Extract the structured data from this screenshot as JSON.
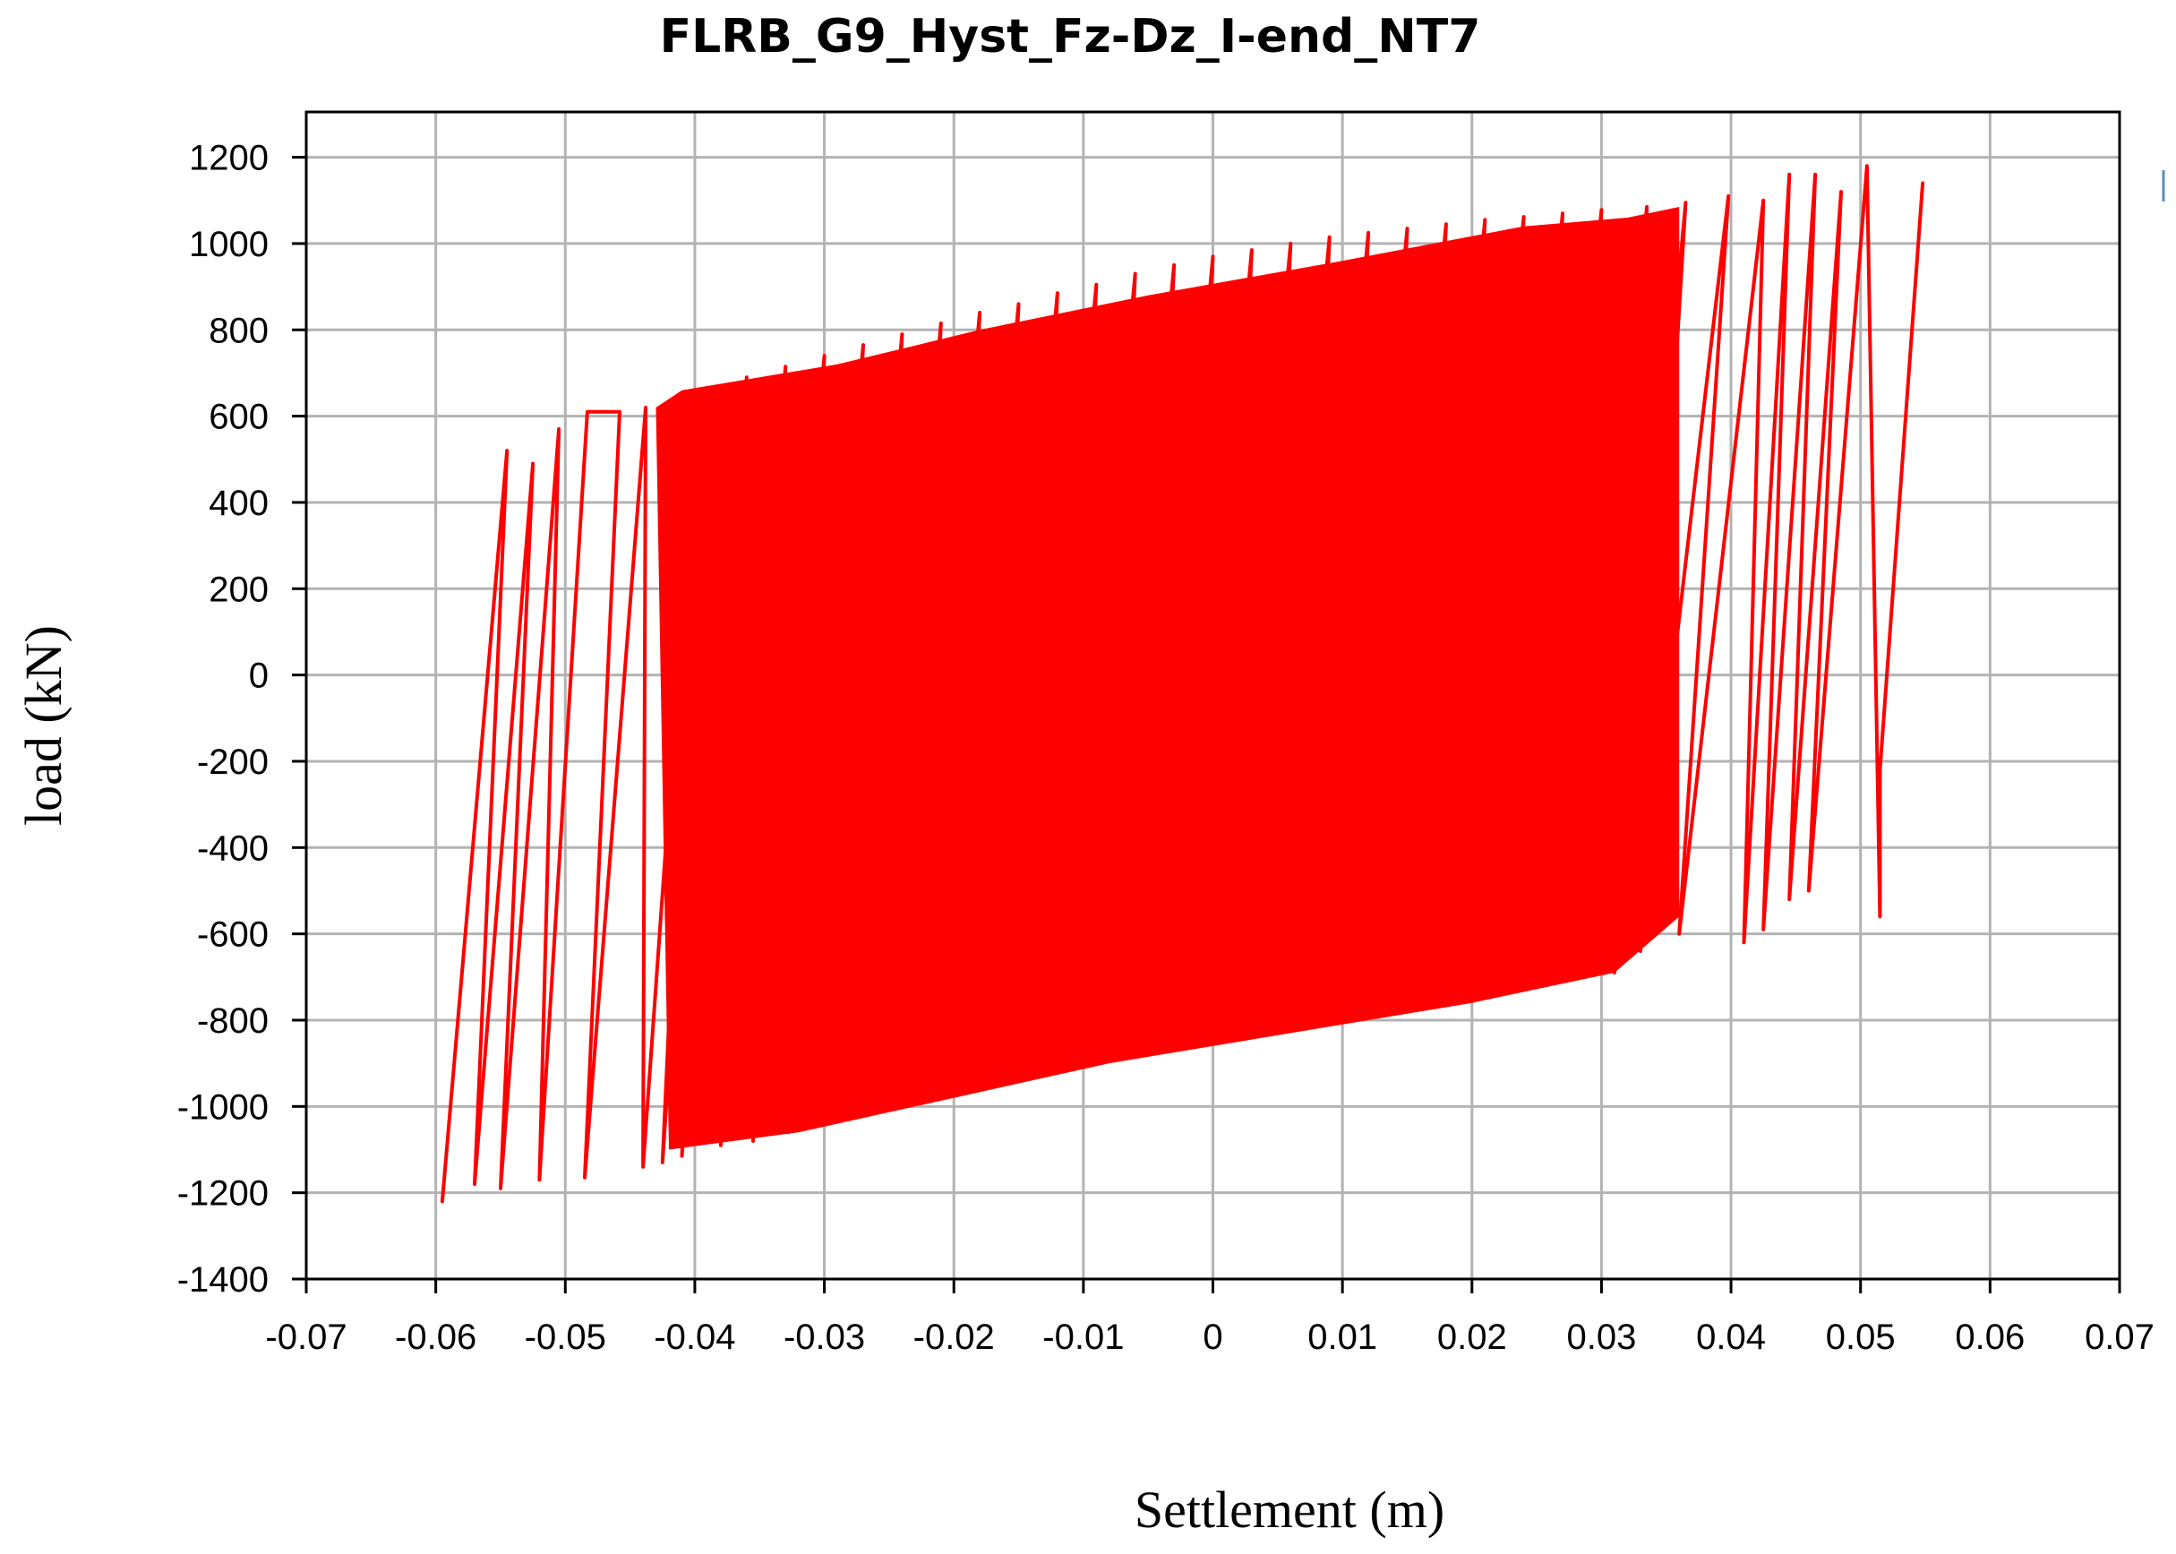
{
  "chart_data": {
    "type": "line",
    "title": "FLRB_G9_Hyst_Fz-Dz_I-end_NT7",
    "xlabel": "Settlement (m)",
    "ylabel": "load  (kN)",
    "xlim": [
      -0.07,
      0.07
    ],
    "ylim": [
      -1400,
      1250
    ],
    "x_ticks": [
      -0.07,
      -0.06,
      -0.05,
      -0.04,
      -0.03,
      -0.02,
      -0.01,
      0,
      0.01,
      0.02,
      0.03,
      0.04,
      0.05,
      0.06,
      0.07
    ],
    "x_tick_labels": [
      "-0.07",
      "-0.06",
      "-0.05",
      "-0.04",
      "-0.03",
      "-0.02",
      "-0.01",
      "0",
      "0.01",
      "0.02",
      "0.03",
      "0.04",
      "0.05",
      "0.06",
      "0.07"
    ],
    "y_ticks": [
      1200,
      1000,
      800,
      600,
      400,
      200,
      0,
      -200,
      -400,
      -600,
      -800,
      -1000,
      -1200,
      -1400
    ],
    "y_tick_labels": [
      "1200",
      "1000",
      "800",
      "600",
      "400",
      "200",
      "0",
      "-200",
      "-400",
      "-600",
      "-800",
      "-1000",
      "-1200",
      "-1400"
    ],
    "grid": true,
    "legend": "none",
    "color": "#ff0000",
    "series": [
      {
        "values": [
          {
            "x": -0.0595,
            "y": -1220
          },
          {
            "x": -0.0545,
            "y": 520
          },
          {
            "x": -0.057,
            "y": -1180
          },
          {
            "x": -0.0525,
            "y": 490
          },
          {
            "x": -0.055,
            "y": -1190
          },
          {
            "x": -0.0505,
            "y": 570
          },
          {
            "x": -0.052,
            "y": -1170
          },
          {
            "x": -0.0483,
            "y": 610
          },
          {
            "x": -0.0458,
            "y": 610
          },
          {
            "x": -0.0485,
            "y": -1165
          },
          {
            "x": -0.0438,
            "y": 620
          },
          {
            "x": -0.044,
            "y": -1140
          },
          {
            "x": -0.0398,
            "y": 630
          },
          {
            "x": -0.0425,
            "y": -1130
          },
          {
            "x": -0.0385,
            "y": 660
          },
          {
            "x": -0.041,
            "y": -1115
          },
          {
            "x": -0.036,
            "y": 690
          },
          {
            "x": -0.038,
            "y": -1090
          },
          {
            "x": -0.033,
            "y": 715
          },
          {
            "x": -0.0355,
            "y": -1080
          },
          {
            "x": -0.03,
            "y": 740
          },
          {
            "x": -0.0328,
            "y": -1060
          },
          {
            "x": -0.027,
            "y": 765
          },
          {
            "x": -0.0298,
            "y": -1040
          },
          {
            "x": -0.024,
            "y": 790
          },
          {
            "x": -0.0268,
            "y": -1020
          },
          {
            "x": -0.021,
            "y": 815
          },
          {
            "x": -0.0238,
            "y": -1000
          },
          {
            "x": -0.018,
            "y": 840
          },
          {
            "x": -0.0208,
            "y": -980
          },
          {
            "x": -0.015,
            "y": 860
          },
          {
            "x": -0.0178,
            "y": -960
          },
          {
            "x": -0.012,
            "y": 885
          },
          {
            "x": -0.0148,
            "y": -940
          },
          {
            "x": -0.009,
            "y": 905
          },
          {
            "x": -0.0118,
            "y": -920
          },
          {
            "x": -0.006,
            "y": 930
          },
          {
            "x": -0.0088,
            "y": -900
          },
          {
            "x": -0.003,
            "y": 950
          },
          {
            "x": -0.0058,
            "y": -880
          },
          {
            "x": 0.0,
            "y": 970
          },
          {
            "x": -0.0028,
            "y": -860
          },
          {
            "x": 0.003,
            "y": 985
          },
          {
            "x": 0.0002,
            "y": -840
          },
          {
            "x": 0.006,
            "y": 1000
          },
          {
            "x": 0.0032,
            "y": -825
          },
          {
            "x": 0.009,
            "y": 1015
          },
          {
            "x": 0.0062,
            "y": -805
          },
          {
            "x": 0.012,
            "y": 1025
          },
          {
            "x": 0.0092,
            "y": -790
          },
          {
            "x": 0.015,
            "y": 1035
          },
          {
            "x": 0.0122,
            "y": -775
          },
          {
            "x": 0.018,
            "y": 1045
          },
          {
            "x": 0.0152,
            "y": -760
          },
          {
            "x": 0.021,
            "y": 1055
          },
          {
            "x": 0.0182,
            "y": -745
          },
          {
            "x": 0.024,
            "y": 1062
          },
          {
            "x": 0.0212,
            "y": -730
          },
          {
            "x": 0.027,
            "y": 1070
          },
          {
            "x": 0.0242,
            "y": -715
          },
          {
            "x": 0.03,
            "y": 1078
          },
          {
            "x": 0.0272,
            "y": -700
          },
          {
            "x": 0.0335,
            "y": 1085
          },
          {
            "x": 0.031,
            "y": -690
          },
          {
            "x": 0.0365,
            "y": 1095
          },
          {
            "x": 0.033,
            "y": -640
          },
          {
            "x": 0.0398,
            "y": 1110
          },
          {
            "x": 0.036,
            "y": -600
          },
          {
            "x": 0.0425,
            "y": 1100
          },
          {
            "x": 0.041,
            "y": -620
          },
          {
            "x": 0.0445,
            "y": 1160
          },
          {
            "x": 0.0425,
            "y": -590
          },
          {
            "x": 0.0465,
            "y": 1160
          },
          {
            "x": 0.0445,
            "y": -520
          },
          {
            "x": 0.0485,
            "y": 1120
          },
          {
            "x": 0.046,
            "y": -500
          },
          {
            "x": 0.0505,
            "y": 1180
          },
          {
            "x": 0.0515,
            "y": -560
          },
          {
            "x": 0.0515,
            "y": -220
          },
          {
            "x": 0.0548,
            "y": 1140
          }
        ]
      }
    ],
    "fill_band": [
      {
        "x": -0.041,
        "y": 660
      },
      {
        "x": -0.029,
        "y": 720
      },
      {
        "x": -0.018,
        "y": 800
      },
      {
        "x": -0.005,
        "y": 880
      },
      {
        "x": 0.01,
        "y": 960
      },
      {
        "x": 0.024,
        "y": 1040
      },
      {
        "x": 0.032,
        "y": 1060
      },
      {
        "x": 0.036,
        "y": 1085
      },
      {
        "x": 0.036,
        "y": -560
      },
      {
        "x": 0.031,
        "y": -690
      },
      {
        "x": 0.02,
        "y": -760
      },
      {
        "x": 0.006,
        "y": -830
      },
      {
        "x": -0.008,
        "y": -900
      },
      {
        "x": -0.02,
        "y": -980
      },
      {
        "x": -0.032,
        "y": -1060
      },
      {
        "x": -0.042,
        "y": -1100
      },
      {
        "x": -0.043,
        "y": 620
      }
    ]
  }
}
